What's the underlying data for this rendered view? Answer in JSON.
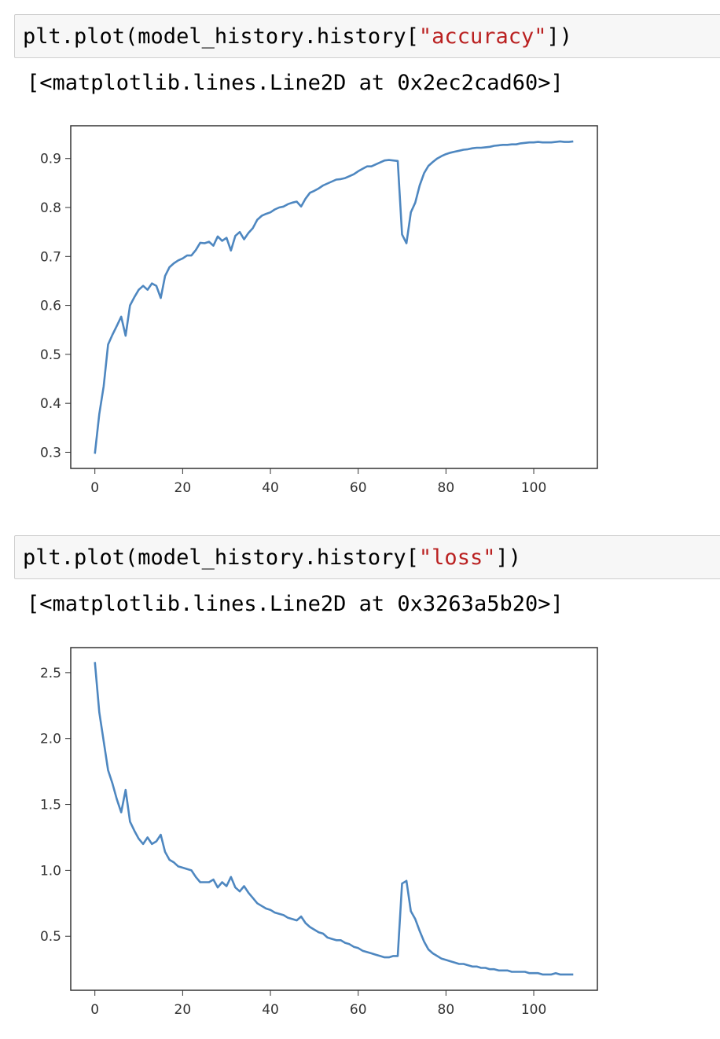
{
  "cells": [
    {
      "input_prefix": "plt.plot(model_history.history[",
      "input_string": "\"accuracy\"",
      "input_suffix": "])",
      "output": "[<matplotlib.lines.Line2D at 0x2ec2cad60>]"
    },
    {
      "input_prefix": "plt.plot(model_history.history[",
      "input_string": "\"loss\"",
      "input_suffix": "])",
      "output": "[<matplotlib.lines.Line2D at 0x3263a5b20>]"
    }
  ],
  "line_color": "#4e87c0",
  "chart_data": [
    {
      "type": "line",
      "title": "",
      "xlabel": "",
      "ylabel": "",
      "xlim": [
        -5.5,
        114.5
      ],
      "ylim": [
        0.267,
        0.967
      ],
      "xticks": [
        0,
        20,
        40,
        60,
        80,
        100
      ],
      "yticks": [
        0.3,
        0.4,
        0.5,
        0.6,
        0.7,
        0.8,
        0.9
      ],
      "ytick_labels": [
        "0.3",
        "0.4",
        "0.5",
        "0.6",
        "0.7",
        "0.8",
        "0.9"
      ],
      "grid": false,
      "x": [
        0,
        1,
        2,
        3,
        4,
        5,
        6,
        7,
        8,
        9,
        10,
        11,
        12,
        13,
        14,
        15,
        16,
        17,
        18,
        19,
        20,
        21,
        22,
        23,
        24,
        25,
        26,
        27,
        28,
        29,
        30,
        31,
        32,
        33,
        34,
        35,
        36,
        37,
        38,
        39,
        40,
        41,
        42,
        43,
        44,
        45,
        46,
        47,
        48,
        49,
        50,
        51,
        52,
        53,
        54,
        55,
        56,
        57,
        58,
        59,
        60,
        61,
        62,
        63,
        64,
        65,
        66,
        67,
        68,
        69,
        70,
        71,
        72,
        73,
        74,
        75,
        76,
        77,
        78,
        79,
        80,
        81,
        82,
        83,
        84,
        85,
        86,
        87,
        88,
        89,
        90,
        91,
        92,
        93,
        94,
        95,
        96,
        97,
        98,
        99,
        100,
        101,
        102,
        103,
        104,
        105,
        106,
        107,
        108,
        109
      ],
      "values": [
        0.297,
        0.378,
        0.435,
        0.52,
        0.54,
        0.558,
        0.577,
        0.538,
        0.6,
        0.617,
        0.632,
        0.64,
        0.632,
        0.645,
        0.64,
        0.615,
        0.66,
        0.678,
        0.686,
        0.692,
        0.696,
        0.702,
        0.702,
        0.713,
        0.728,
        0.727,
        0.73,
        0.722,
        0.741,
        0.732,
        0.738,
        0.712,
        0.742,
        0.75,
        0.735,
        0.748,
        0.758,
        0.775,
        0.783,
        0.787,
        0.79,
        0.796,
        0.8,
        0.802,
        0.807,
        0.81,
        0.812,
        0.802,
        0.818,
        0.83,
        0.834,
        0.839,
        0.845,
        0.849,
        0.853,
        0.857,
        0.858,
        0.86,
        0.864,
        0.868,
        0.874,
        0.879,
        0.884,
        0.884,
        0.888,
        0.892,
        0.896,
        0.897,
        0.896,
        0.895,
        0.745,
        0.727,
        0.79,
        0.81,
        0.845,
        0.87,
        0.885,
        0.893,
        0.9,
        0.905,
        0.909,
        0.912,
        0.914,
        0.916,
        0.918,
        0.919,
        0.921,
        0.922,
        0.922,
        0.923,
        0.924,
        0.926,
        0.927,
        0.928,
        0.928,
        0.929,
        0.929,
        0.931,
        0.932,
        0.933,
        0.933,
        0.934,
        0.933,
        0.933,
        0.933,
        0.934,
        0.935,
        0.934,
        0.934,
        0.935
      ]
    },
    {
      "type": "line",
      "title": "",
      "xlabel": "",
      "ylabel": "",
      "xlim": [
        -5.5,
        114.5
      ],
      "ylim": [
        0.09,
        2.69
      ],
      "xticks": [
        0,
        20,
        40,
        60,
        80,
        100
      ],
      "yticks": [
        0.5,
        1.0,
        1.5,
        2.0,
        2.5
      ],
      "ytick_labels": [
        "0.5",
        "1.0",
        "1.5",
        "2.0",
        "2.5"
      ],
      "grid": false,
      "x": [
        0,
        1,
        2,
        3,
        4,
        5,
        6,
        7,
        8,
        9,
        10,
        11,
        12,
        13,
        14,
        15,
        16,
        17,
        18,
        19,
        20,
        21,
        22,
        23,
        24,
        25,
        26,
        27,
        28,
        29,
        30,
        31,
        32,
        33,
        34,
        35,
        36,
        37,
        38,
        39,
        40,
        41,
        42,
        43,
        44,
        45,
        46,
        47,
        48,
        49,
        50,
        51,
        52,
        53,
        54,
        55,
        56,
        57,
        58,
        59,
        60,
        61,
        62,
        63,
        64,
        65,
        66,
        67,
        68,
        69,
        70,
        71,
        72,
        73,
        74,
        75,
        76,
        77,
        78,
        79,
        80,
        81,
        82,
        83,
        84,
        85,
        86,
        87,
        88,
        89,
        90,
        91,
        92,
        93,
        94,
        95,
        96,
        97,
        98,
        99,
        100,
        101,
        102,
        103,
        104,
        105,
        106,
        107,
        108,
        109
      ],
      "values": [
        2.58,
        2.2,
        1.98,
        1.76,
        1.66,
        1.54,
        1.44,
        1.61,
        1.37,
        1.3,
        1.24,
        1.2,
        1.25,
        1.2,
        1.22,
        1.27,
        1.14,
        1.08,
        1.06,
        1.03,
        1.02,
        1.01,
        1.0,
        0.95,
        0.91,
        0.91,
        0.91,
        0.93,
        0.87,
        0.91,
        0.88,
        0.95,
        0.87,
        0.84,
        0.88,
        0.83,
        0.79,
        0.75,
        0.73,
        0.71,
        0.7,
        0.68,
        0.67,
        0.66,
        0.64,
        0.63,
        0.62,
        0.65,
        0.6,
        0.57,
        0.55,
        0.53,
        0.52,
        0.49,
        0.48,
        0.47,
        0.47,
        0.45,
        0.44,
        0.42,
        0.41,
        0.39,
        0.38,
        0.37,
        0.36,
        0.35,
        0.34,
        0.34,
        0.35,
        0.35,
        0.9,
        0.92,
        0.69,
        0.63,
        0.54,
        0.46,
        0.4,
        0.37,
        0.35,
        0.33,
        0.32,
        0.31,
        0.3,
        0.29,
        0.29,
        0.28,
        0.27,
        0.27,
        0.26,
        0.26,
        0.25,
        0.25,
        0.24,
        0.24,
        0.24,
        0.23,
        0.23,
        0.23,
        0.23,
        0.22,
        0.22,
        0.22,
        0.21,
        0.21,
        0.21,
        0.22,
        0.21,
        0.21,
        0.21,
        0.21
      ]
    }
  ]
}
